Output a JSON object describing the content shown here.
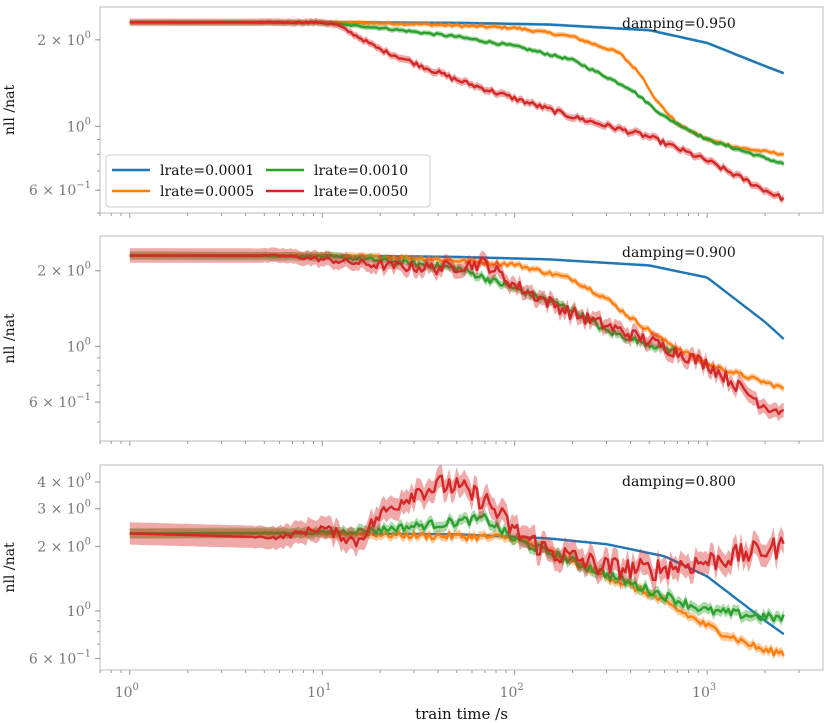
{
  "chart_data": {
    "type": "line",
    "xlabel": "train time /s",
    "xscale": "log",
    "yscale": "log",
    "xlim": [
      0.7,
      4000
    ],
    "x_ticks": [
      {
        "value": 1,
        "base": "10",
        "exp": "0"
      },
      {
        "value": 10,
        "base": "10",
        "exp": "1"
      },
      {
        "value": 100,
        "base": "10",
        "exp": "2"
      },
      {
        "value": 1000,
        "base": "10",
        "exp": "3"
      }
    ],
    "series_styles": [
      {
        "name": "lrate=0.0001",
        "color": "#1f77b4"
      },
      {
        "name": "lrate=0.0005",
        "color": "#ff7f0e"
      },
      {
        "name": "lrate=0.0010",
        "color": "#2ca02c"
      },
      {
        "name": "lrate=0.0050",
        "color": "#d62728"
      }
    ],
    "legend": {
      "location": "lower-left",
      "columns": 2,
      "panel": 0
    },
    "grid": false,
    "panels": [
      {
        "ylabel": "nll /nat",
        "annotation": "damping=0.950",
        "ylim": [
          0.5,
          2.6
        ],
        "y_ticks": [
          {
            "value": 2.0,
            "mant": "2 × 10",
            "exp": "0"
          },
          {
            "value": 1.0,
            "mant": "10",
            "exp": "0"
          },
          {
            "value": 0.6,
            "mant": "6 × 10",
            "exp": "−1"
          }
        ],
        "series": [
          {
            "name": "lrate=0.0001",
            "noise": 0,
            "x": [
              1,
              10,
              50,
              150,
              500,
              1000,
              2000,
              2500
            ],
            "y": [
              2.3,
              2.3,
              2.29,
              2.26,
              2.16,
              1.95,
              1.62,
              1.53
            ]
          },
          {
            "name": "lrate=0.0005",
            "noise": 0.01,
            "x": [
              1,
              10,
              30,
              100,
              200,
              350,
              450,
              550,
              700,
              1000,
              1500,
              2500
            ],
            "y": [
              2.3,
              2.3,
              2.27,
              2.2,
              2.05,
              1.8,
              1.52,
              1.22,
              1.02,
              0.9,
              0.84,
              0.8
            ]
          },
          {
            "name": "lrate=0.0010",
            "noise": 0.01,
            "x": [
              1,
              10,
              20,
              50,
              100,
              200,
              400,
              600,
              1000,
              2500
            ],
            "y": [
              2.3,
              2.29,
              2.2,
              2.05,
              1.9,
              1.7,
              1.35,
              1.08,
              0.9,
              0.74
            ]
          },
          {
            "name": "lrate=0.0050",
            "noise": 0.02,
            "x": [
              1,
              10,
              12,
              20,
              50,
              100,
              200,
              500,
              1000,
              2000,
              2500
            ],
            "y": [
              2.3,
              2.3,
              2.25,
              1.85,
              1.45,
              1.25,
              1.08,
              0.92,
              0.76,
              0.6,
              0.56
            ]
          }
        ]
      },
      {
        "ylabel": "nll /nat",
        "annotation": "damping=0.900",
        "ylim": [
          0.42,
          2.75
        ],
        "y_ticks": [
          {
            "value": 2.0,
            "mant": "2 × 10",
            "exp": "0"
          },
          {
            "value": 1.0,
            "mant": "10",
            "exp": "0"
          },
          {
            "value": 0.6,
            "mant": "6 × 10",
            "exp": "−1"
          }
        ],
        "series": [
          {
            "name": "lrate=0.0001",
            "noise": 0,
            "x": [
              1,
              10,
              50,
              150,
              500,
              1000,
              2000,
              2500
            ],
            "y": [
              2.3,
              2.3,
              2.27,
              2.22,
              2.1,
              1.88,
              1.25,
              1.07
            ]
          },
          {
            "name": "lrate=0.0005",
            "noise": 0.02,
            "x": [
              1,
              10,
              30,
              100,
              200,
              300,
              400,
              600,
              1000,
              2500
            ],
            "y": [
              2.3,
              2.3,
              2.25,
              2.12,
              1.85,
              1.55,
              1.3,
              1.05,
              0.85,
              0.68
            ]
          },
          {
            "name": "lrate=0.0010",
            "noise": 0.03,
            "x": [
              1,
              10,
              20,
              50,
              100,
              200,
              300,
              600,
              700
            ],
            "y": [
              2.3,
              2.28,
              2.2,
              2.05,
              1.7,
              1.4,
              1.15,
              0.98,
              0.95
            ]
          },
          {
            "name": "lrate=0.0050",
            "noise": 0.06,
            "x": [
              1,
              6,
              10,
              20,
              40,
              70,
              100,
              200,
              500,
              1000,
              1500,
              2000,
              2500
            ],
            "y": [
              2.3,
              2.3,
              2.22,
              2.1,
              2.05,
              2.15,
              1.75,
              1.35,
              1.05,
              0.85,
              0.68,
              0.58,
              0.55
            ]
          }
        ]
      },
      {
        "ylabel": "nll /nat",
        "annotation": "damping=0.800",
        "xlabel": "train time /s",
        "ylim": [
          0.53,
          4.8
        ],
        "y_ticks": [
          {
            "value": 4.0,
            "mant": "4 × 10",
            "exp": "0"
          },
          {
            "value": 3.0,
            "mant": "3 × 10",
            "exp": "0"
          },
          {
            "value": 2.0,
            "mant": "2 × 10",
            "exp": "0"
          },
          {
            "value": 1.0,
            "mant": "10",
            "exp": "0"
          },
          {
            "value": 0.6,
            "mant": "6 × 10",
            "exp": "−1"
          }
        ],
        "series": [
          {
            "name": "lrate=0.0001",
            "noise": 0,
            "x": [
              1,
              10,
              50,
              150,
              300,
              600,
              1000,
              2000,
              2500
            ],
            "y": [
              2.3,
              2.3,
              2.28,
              2.18,
              2.05,
              1.8,
              1.45,
              0.9,
              0.78
            ]
          },
          {
            "name": "lrate=0.0005",
            "noise": 0.04,
            "x": [
              1,
              10,
              30,
              100,
              200,
              500,
              1000,
              2000,
              2500
            ],
            "y": [
              2.3,
              2.3,
              2.25,
              2.2,
              1.7,
              1.2,
              0.85,
              0.65,
              0.64
            ]
          },
          {
            "name": "lrate=0.0010",
            "noise": 0.05,
            "x": [
              1,
              10,
              20,
              40,
              70,
              100,
              200,
              500,
              1000,
              2500
            ],
            "y": [
              2.3,
              2.32,
              2.4,
              2.55,
              2.7,
              2.15,
              1.7,
              1.25,
              1.0,
              0.92
            ]
          },
          {
            "name": "lrate=0.0050",
            "noise": 0.12,
            "x": [
              1,
              6,
              10,
              15,
              20,
              30,
              45,
              70,
              100,
              150,
              300,
              500,
              1000,
              2500
            ],
            "y": [
              2.3,
              2.2,
              2.45,
              2.1,
              2.8,
              3.6,
              3.9,
              3.3,
              2.35,
              1.9,
              1.6,
              1.55,
              1.7,
              2.0
            ]
          }
        ]
      }
    ]
  }
}
